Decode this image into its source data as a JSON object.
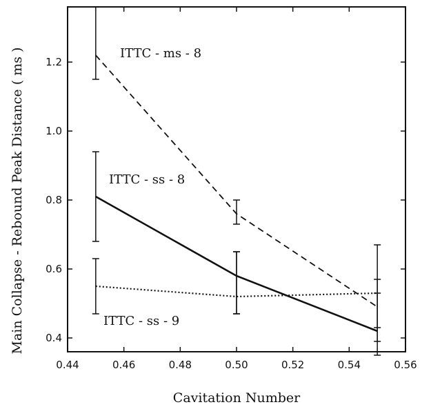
{
  "chart_data": {
    "type": "line",
    "xlabel": "Cavitation Number",
    "ylabel": "Main Collapse - Rebound Peak Distance ( ms )",
    "xlim": [
      0.44,
      0.56
    ],
    "ylim": [
      0.36,
      1.36
    ],
    "x_ticks": [
      "0.44",
      "0.46",
      "0.48",
      "0.50",
      "0.52",
      "0.54",
      "0.56"
    ],
    "y_ticks": [
      "0.4",
      "0.6",
      "0.8",
      "1.0",
      "1.2"
    ],
    "grid": false,
    "series": [
      {
        "name": "ITTC - ms - 8",
        "line_style": "dashed",
        "x": [
          0.45,
          0.5,
          0.55
        ],
        "y": [
          1.22,
          0.76,
          0.49
        ],
        "error_low": [
          1.15,
          0.73,
          0.39
        ],
        "error_high": [
          1.36,
          0.8,
          0.57
        ]
      },
      {
        "name": "ITTC - ss - 8",
        "line_style": "solid",
        "x": [
          0.45,
          0.5,
          0.55
        ],
        "y": [
          0.81,
          0.58,
          0.42
        ],
        "error_low": [
          0.68,
          0.47,
          0.35
        ],
        "error_high": [
          0.94,
          0.65,
          0.53
        ]
      },
      {
        "name": "ITTC - ss - 9",
        "line_style": "dotted",
        "x": [
          0.45,
          0.5,
          0.55
        ],
        "y": [
          0.55,
          0.52,
          0.53
        ],
        "error_low": [
          0.47,
          0.47,
          0.43
        ],
        "error_high": [
          0.63,
          0.65,
          0.67
        ]
      }
    ]
  }
}
